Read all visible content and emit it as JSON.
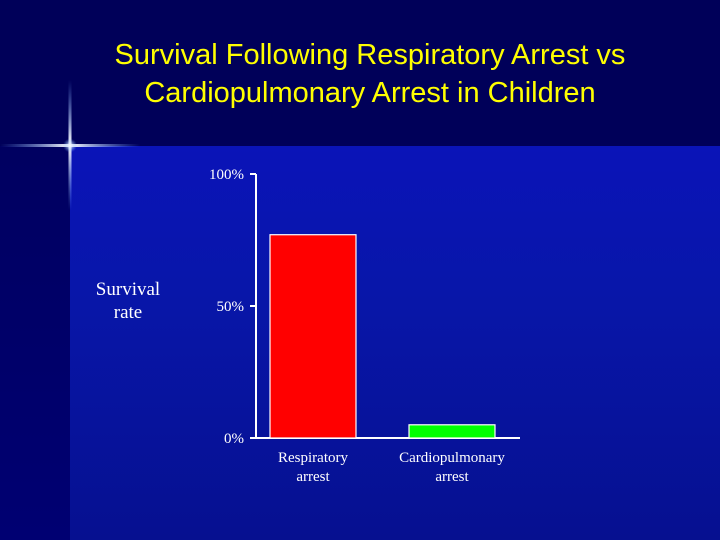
{
  "slide": {
    "title_line1": "Survival Following Respiratory Arrest vs",
    "title_line2": "Cardiopulmonary Arrest in Children",
    "title_color": "#ffff00",
    "background_color": "#000066"
  },
  "chart_data": {
    "type": "bar",
    "title": "",
    "ylabel_lines": [
      "Survival",
      "rate"
    ],
    "xlabel": "",
    "categories": [
      [
        "Respiratory",
        "arrest"
      ],
      [
        "Cardiopulmonary",
        "arrest"
      ]
    ],
    "values": [
      77,
      5
    ],
    "value_unit": "%",
    "bar_colors": [
      "#ff0000",
      "#00ff00"
    ],
    "ylim": [
      0,
      100
    ],
    "yticks": [
      0,
      50,
      100
    ],
    "ytick_labels": [
      "0%",
      "50%",
      "100%"
    ],
    "grid": false,
    "legend": "none"
  }
}
